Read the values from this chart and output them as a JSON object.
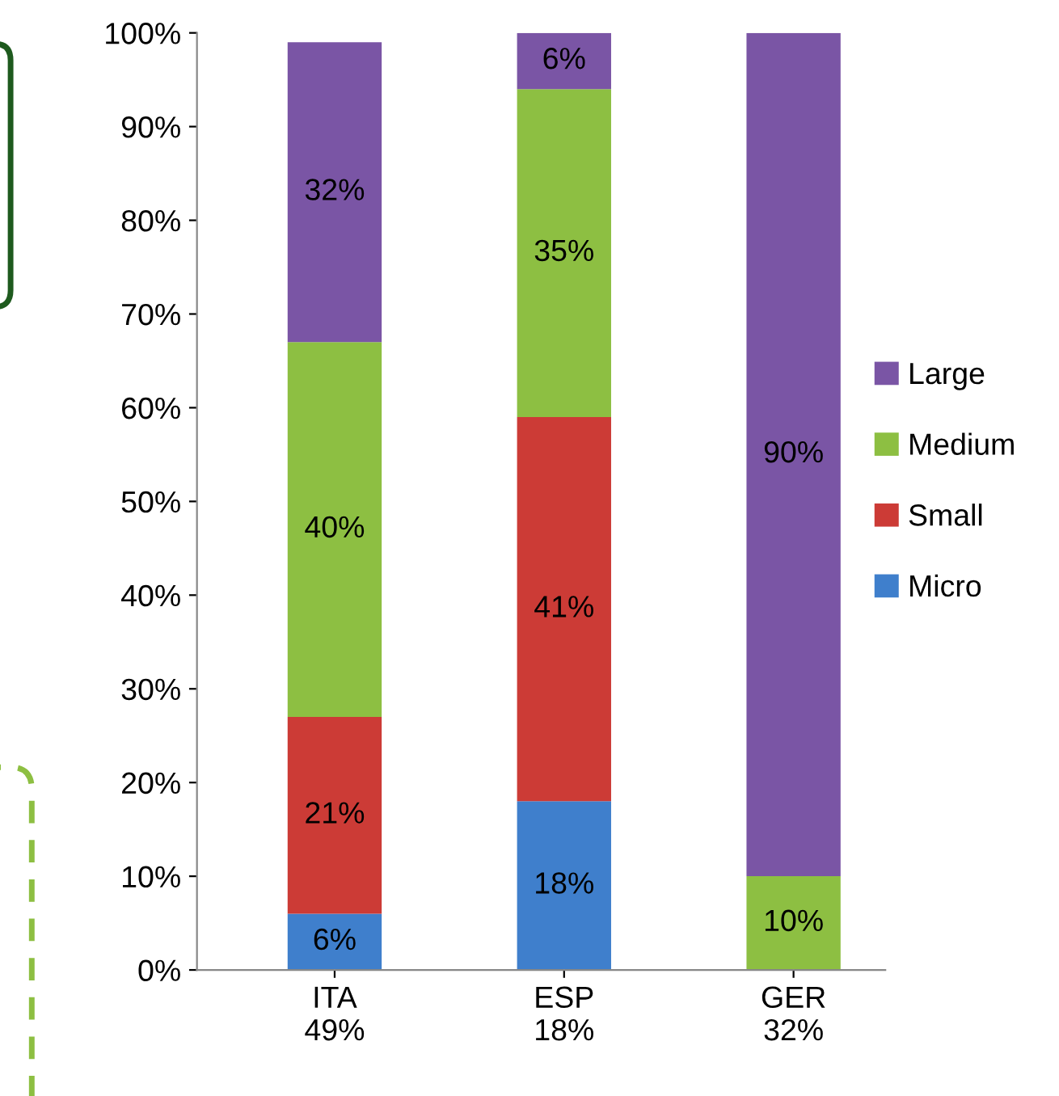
{
  "chart_data": {
    "type": "bar",
    "stacked": true,
    "categories": [
      "ITA\n49%",
      "ESP\n18%",
      "GER\n32%"
    ],
    "series": [
      {
        "name": "Micro",
        "color": "#3f7fcc",
        "values": [
          6,
          18,
          0
        ],
        "value_labels": [
          "6%",
          "18%",
          null
        ]
      },
      {
        "name": "Small",
        "color": "#cc3b36",
        "values": [
          21,
          41,
          0
        ],
        "value_labels": [
          "21%",
          "41%",
          null
        ]
      },
      {
        "name": "Medium",
        "color": "#8dbf42",
        "values": [
          40,
          35,
          10
        ],
        "value_labels": [
          "40%",
          "35%",
          "10%"
        ]
      },
      {
        "name": "Large",
        "color": "#7a55a5",
        "values": [
          32,
          6,
          90
        ],
        "value_labels": [
          "32%",
          "6%",
          "90%"
        ]
      }
    ],
    "ylim": [
      0,
      100
    ],
    "yticks": [
      {
        "value": 0,
        "label": "0%"
      },
      {
        "value": 10,
        "label": "10%"
      },
      {
        "value": 20,
        "label": "20%"
      },
      {
        "value": 30,
        "label": "30%"
      },
      {
        "value": 40,
        "label": "40%"
      },
      {
        "value": 50,
        "label": "50%"
      },
      {
        "value": 60,
        "label": "60%"
      },
      {
        "value": 70,
        "label": "70%"
      },
      {
        "value": 80,
        "label": "80%"
      },
      {
        "value": 90,
        "label": "90%"
      },
      {
        "value": 100,
        "label": "100%"
      }
    ],
    "legend": "right",
    "grid": false
  }
}
